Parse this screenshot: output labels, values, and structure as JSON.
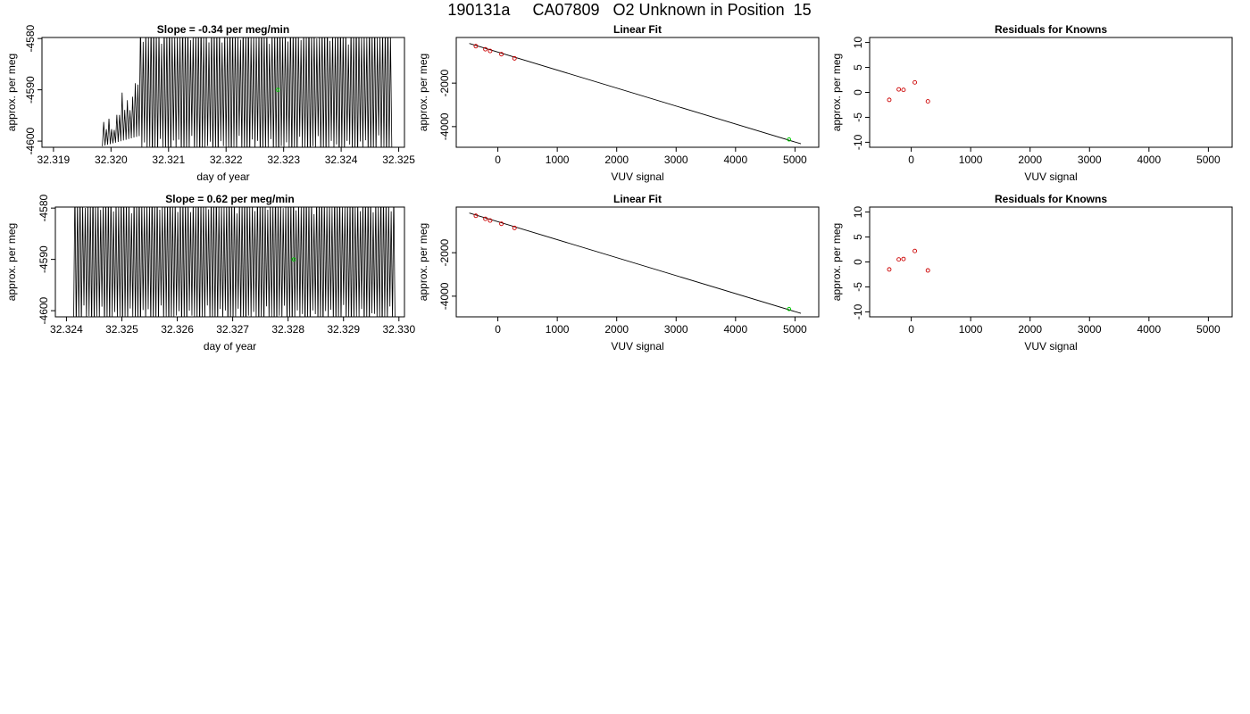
{
  "page_title": "190131a     CA07809   O2 Unknown in Position  15",
  "colors": {
    "trace": "#000000",
    "known_points": "#cc0000",
    "unknown_point": "#00cc00",
    "frame": "#000000"
  },
  "chart_data": [
    {
      "id": "drift-top",
      "type": "line",
      "title": "Slope =  -0.34  per meg/min",
      "xlabel": "day of year",
      "ylabel": "approx. per meg",
      "xlim": [
        32.3188,
        32.3251
      ],
      "ylim": [
        -4601.2,
        -4579.8
      ],
      "xticks": [
        32.319,
        32.32,
        32.321,
        32.322,
        32.323,
        32.324,
        32.325
      ],
      "xtick_labels": [
        "32.319",
        "32.320",
        "32.321",
        "32.322",
        "32.323",
        "32.324",
        "32.325"
      ],
      "yticks": [
        -4580,
        -4590,
        -4600
      ],
      "ytick_labels": [
        "-4580",
        "-4590",
        "-4600"
      ],
      "trace": {
        "x_start": 32.31985,
        "x_end": 32.32488,
        "cycles": 110,
        "ramp_until": 32.3205
      },
      "highlight": {
        "x": 32.3229,
        "y": -4590.0
      }
    },
    {
      "id": "fit-top",
      "type": "scatter",
      "title": "Linear Fit",
      "xlabel": "VUV signal",
      "ylabel": "approx. per meg",
      "xlim": [
        -700,
        5400
      ],
      "ylim": [
        -4950,
        100
      ],
      "xticks": [
        0,
        1000,
        2000,
        3000,
        4000,
        5000
      ],
      "xtick_labels": [
        "0",
        "1000",
        "2000",
        "3000",
        "4000",
        "5000"
      ],
      "yticks": [
        -2000,
        -4000
      ],
      "ytick_labels": [
        "-2000",
        "-4000"
      ],
      "line": {
        "x": [
          -480,
          5100
        ],
        "y": [
          -175,
          -4790
        ]
      },
      "points": [
        {
          "x": -370,
          "y": -300
        },
        {
          "x": -210,
          "y": -440
        },
        {
          "x": -130,
          "y": -520
        },
        {
          "x": 60,
          "y": -670
        },
        {
          "x": 280,
          "y": -860
        }
      ],
      "highlight": {
        "x": 4900,
        "y": -4590
      }
    },
    {
      "id": "resid-top",
      "type": "scatter",
      "title": "Residuals for Knowns",
      "xlabel": "VUV signal",
      "ylabel": "approx. per meg",
      "xlim": [
        -700,
        5400
      ],
      "ylim": [
        -11,
        11
      ],
      "xticks": [
        0,
        1000,
        2000,
        3000,
        4000,
        5000
      ],
      "xtick_labels": [
        "0",
        "1000",
        "2000",
        "3000",
        "4000",
        "5000"
      ],
      "yticks": [
        10,
        5,
        0,
        -5,
        -10
      ],
      "ytick_labels": [
        "10",
        "5",
        "0",
        "-5",
        "-10"
      ],
      "points": [
        {
          "x": -370,
          "y": -1.5
        },
        {
          "x": -210,
          "y": 0.6
        },
        {
          "x": -130,
          "y": 0.5
        },
        {
          "x": 60,
          "y": 2.0
        },
        {
          "x": 280,
          "y": -1.8
        }
      ]
    },
    {
      "id": "drift-bottom",
      "type": "line",
      "title": "Slope =  0.62  per meg/min",
      "xlabel": "day of year",
      "ylabel": "approx. per meg",
      "xlim": [
        32.3238,
        32.3301
      ],
      "ylim": [
        -4601.2,
        -4579.8
      ],
      "xticks": [
        32.324,
        32.325,
        32.326,
        32.327,
        32.328,
        32.329,
        32.33
      ],
      "xtick_labels": [
        "32.324",
        "32.325",
        "32.326",
        "32.327",
        "32.328",
        "32.329",
        "32.330"
      ],
      "yticks": [
        -4580,
        -4590,
        -4600
      ],
      "ytick_labels": [
        "-4580",
        "-4590",
        "-4600"
      ],
      "trace": {
        "x_start": 32.32413,
        "x_end": 32.32993,
        "cycles": 125,
        "ramp_until": 32.3241
      },
      "highlight": {
        "x": 32.3281,
        "y": -4590.0
      }
    },
    {
      "id": "fit-bottom",
      "type": "scatter",
      "title": "Linear Fit",
      "xlabel": "VUV signal",
      "ylabel": "approx. per meg",
      "xlim": [
        -700,
        5400
      ],
      "ylim": [
        -4950,
        100
      ],
      "xticks": [
        0,
        1000,
        2000,
        3000,
        4000,
        5000
      ],
      "xtick_labels": [
        "0",
        "1000",
        "2000",
        "3000",
        "4000",
        "5000"
      ],
      "yticks": [
        -2000,
        -4000
      ],
      "ytick_labels": [
        "-2000",
        "-4000"
      ],
      "line": {
        "x": [
          -480,
          5100
        ],
        "y": [
          -175,
          -4790
        ]
      },
      "points": [
        {
          "x": -370,
          "y": -300
        },
        {
          "x": -210,
          "y": -440
        },
        {
          "x": -130,
          "y": -520
        },
        {
          "x": 60,
          "y": -670
        },
        {
          "x": 280,
          "y": -860
        }
      ],
      "highlight": {
        "x": 4900,
        "y": -4590
      }
    },
    {
      "id": "resid-bottom",
      "type": "scatter",
      "title": "Residuals for Knowns",
      "xlabel": "VUV signal",
      "ylabel": "approx. per meg",
      "xlim": [
        -700,
        5400
      ],
      "ylim": [
        -11,
        11
      ],
      "xticks": [
        0,
        1000,
        2000,
        3000,
        4000,
        5000
      ],
      "xtick_labels": [
        "0",
        "1000",
        "2000",
        "3000",
        "4000",
        "5000"
      ],
      "yticks": [
        10,
        5,
        0,
        -5,
        -10
      ],
      "ytick_labels": [
        "10",
        "5",
        "0",
        "-5",
        "-10"
      ],
      "points": [
        {
          "x": -370,
          "y": -1.5
        },
        {
          "x": -210,
          "y": 0.5
        },
        {
          "x": -130,
          "y": 0.6
        },
        {
          "x": 60,
          "y": 2.2
        },
        {
          "x": 280,
          "y": -1.7
        }
      ]
    }
  ]
}
